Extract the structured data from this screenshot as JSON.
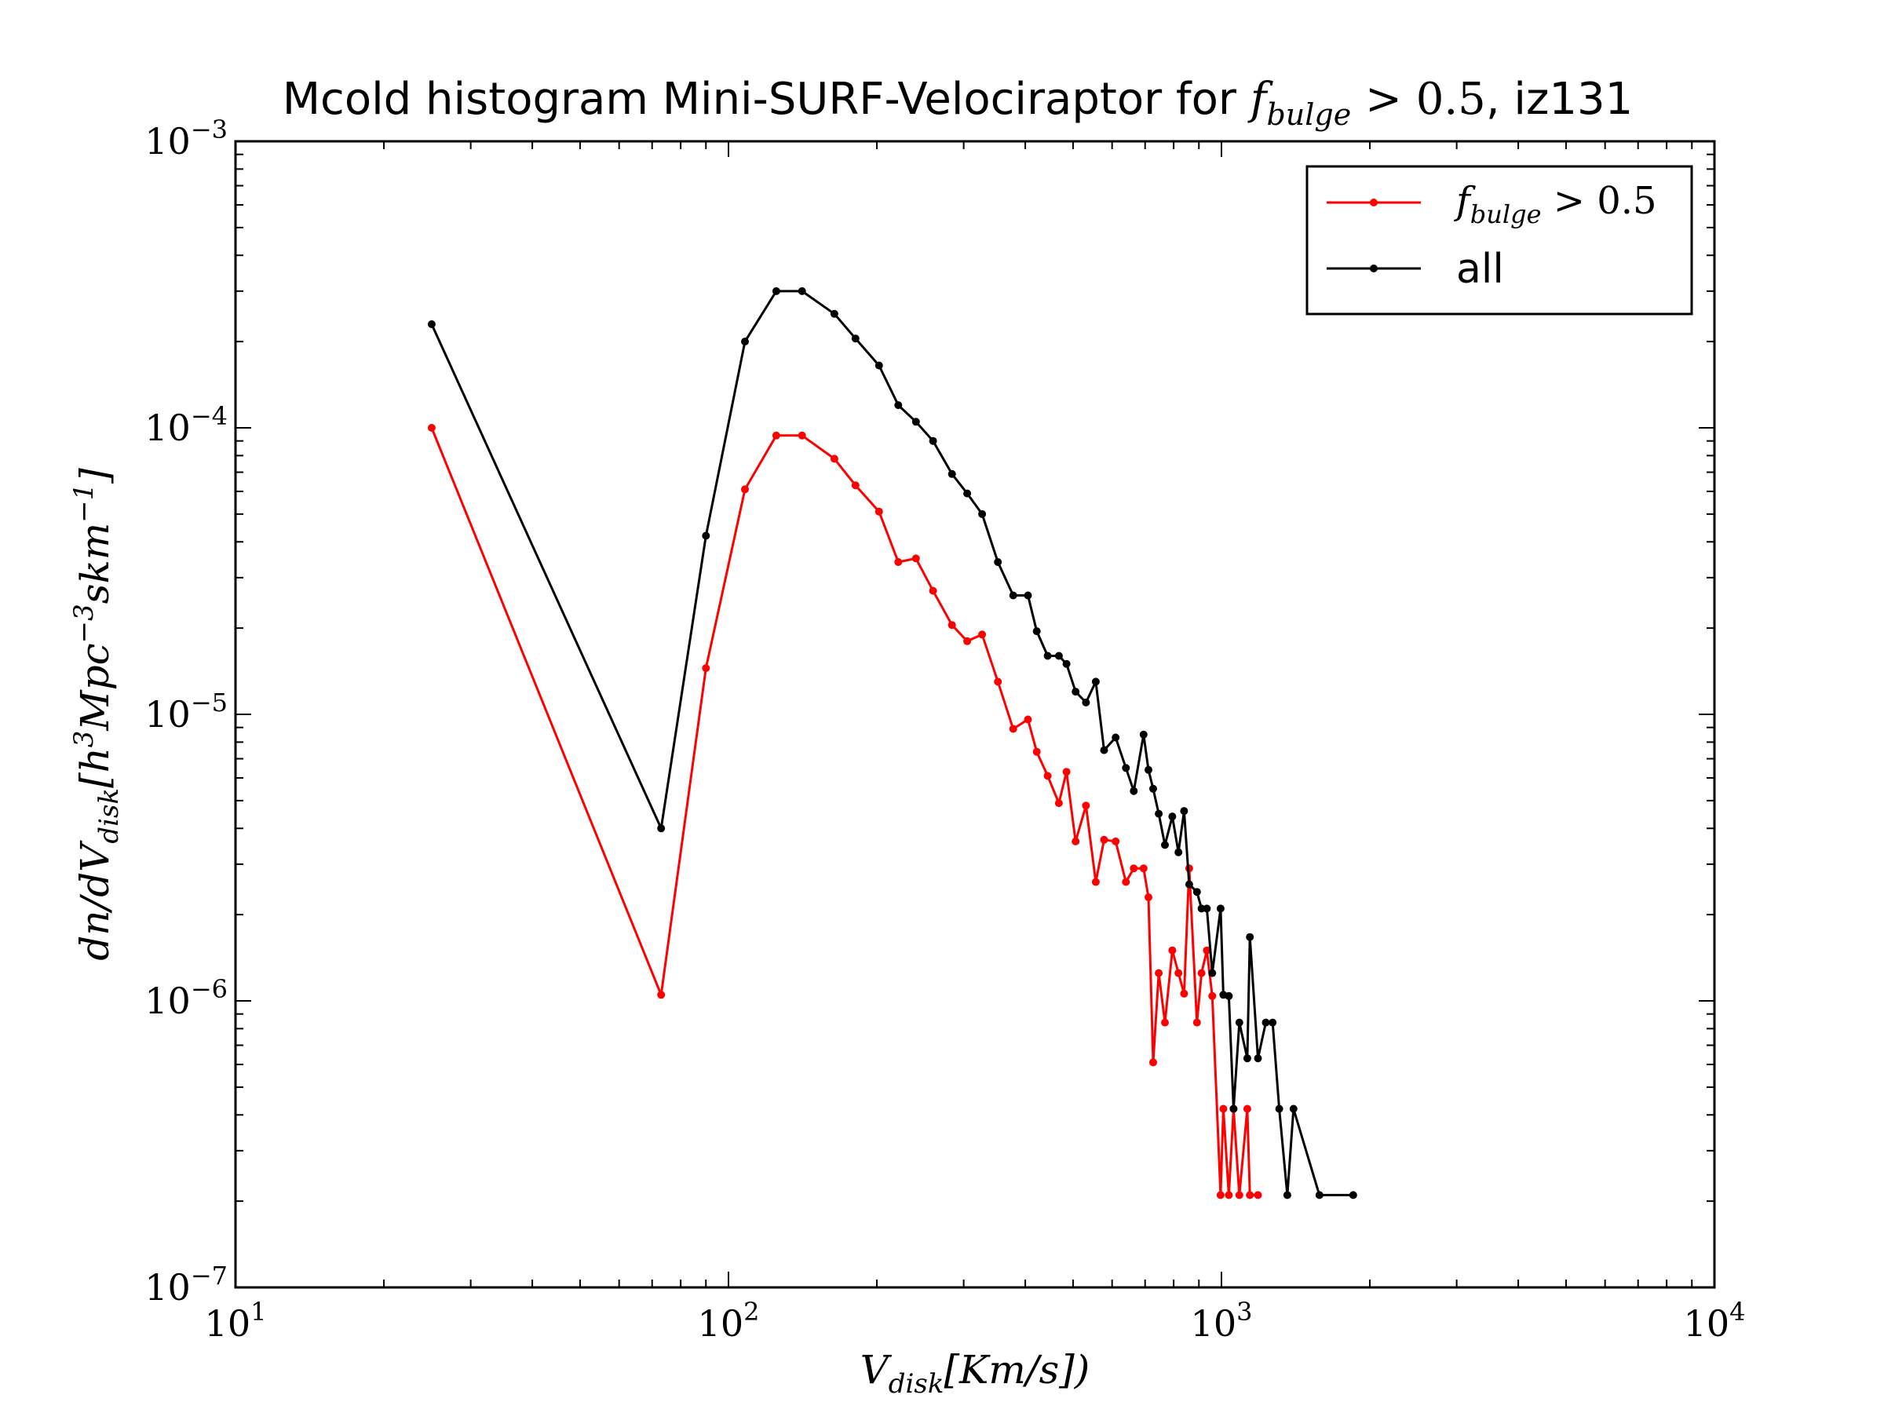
{
  "chart_data": {
    "type": "line",
    "title": {
      "prefix": "Mcold histogram Mini-SURF-Velociraptor for ",
      "math_base": "f",
      "math_sub": "bulge",
      "math_rest": " > 0.5",
      "suffix": ", iz131"
    },
    "xlabel": {
      "base": "V",
      "sub": "disk",
      "rest": "[Km/s])"
    },
    "ylabel": {
      "pre": "dn/dV",
      "sub": "disk",
      "mid": "[h",
      "sup1": "3",
      "mid2": "Mpc",
      "sup2": "−3",
      "mid3": "skm",
      "sup3": "−1",
      "end": "]"
    },
    "x_scale": "log",
    "y_scale": "log",
    "xlim": [
      10,
      10000
    ],
    "ylim": [
      1e-07,
      0.001
    ],
    "x_tick_labels": [
      {
        "value": 10,
        "base": "10",
        "exp": "1"
      },
      {
        "value": 100,
        "base": "10",
        "exp": "2"
      },
      {
        "value": 1000,
        "base": "10",
        "exp": "3"
      },
      {
        "value": 10000,
        "base": "10",
        "exp": "4"
      }
    ],
    "y_tick_labels": [
      {
        "value": 0.001,
        "base": "10",
        "exp": "−3"
      },
      {
        "value": 0.0001,
        "base": "10",
        "exp": "−4"
      },
      {
        "value": 1e-05,
        "base": "10",
        "exp": "−5"
      },
      {
        "value": 1e-06,
        "base": "10",
        "exp": "−6"
      },
      {
        "value": 1e-07,
        "base": "10",
        "exp": "−7"
      }
    ],
    "grid": false,
    "legend_position": "top-right",
    "series": [
      {
        "name": "f_bulge > 0.5",
        "legend": {
          "base": "f",
          "sub": "bulge",
          "rest": " > 0.5"
        },
        "color": "#ff0000",
        "x": [
          25,
          73,
          90,
          108,
          125,
          141,
          164,
          181,
          202,
          221,
          240,
          260,
          284,
          305,
          327,
          352,
          378,
          405,
          422,
          444,
          468,
          485,
          506,
          531,
          556,
          578,
          610,
          640,
          664,
          695,
          711,
          727,
          746,
          768,
          795,
          818,
          840,
          860,
          892,
          911,
          934,
          958,
          996,
          1009,
          1035,
          1058,
          1087,
          1128,
          1142,
          1186
        ],
        "y": [
          0.0001,
          1.05e-06,
          1.45e-05,
          6.1e-05,
          9.4e-05,
          9.4e-05,
          7.8e-05,
          6.3e-05,
          5.1e-05,
          3.4e-05,
          3.5e-05,
          2.7e-05,
          2.05e-05,
          1.8e-05,
          1.9e-05,
          1.3e-05,
          8.9e-06,
          9.6e-06,
          7.4e-06,
          6.1e-06,
          4.9e-06,
          6.3e-06,
          3.6e-06,
          4.8e-06,
          2.6e-06,
          3.65e-06,
          3.6e-06,
          2.6e-06,
          2.9e-06,
          2.9e-06,
          2.3e-06,
          6.1e-07,
          1.25e-06,
          8.4e-07,
          1.5e-06,
          1.25e-06,
          1.06e-06,
          2.9e-06,
          8.4e-07,
          1.25e-06,
          1.5e-06,
          1.04e-06,
          2.1e-07,
          4.2e-07,
          2.1e-07,
          4.2e-07,
          2.1e-07,
          4.2e-07,
          2.1e-07,
          2.1e-07
        ]
      },
      {
        "name": "all",
        "legend": {
          "base": "all",
          "sub": "",
          "rest": ""
        },
        "color": "#000000",
        "x": [
          25,
          73,
          90,
          108,
          125,
          141,
          164,
          181,
          202,
          221,
          240,
          260,
          284,
          305,
          327,
          352,
          378,
          405,
          422,
          444,
          468,
          485,
          506,
          531,
          556,
          578,
          610,
          640,
          664,
          695,
          711,
          727,
          746,
          768,
          795,
          818,
          840,
          860,
          892,
          911,
          934,
          958,
          996,
          1009,
          1035,
          1058,
          1087,
          1128,
          1142,
          1186,
          1230,
          1270,
          1310,
          1360,
          1400,
          1580,
          1850
        ],
        "y": [
          0.00023,
          4e-06,
          4.2e-05,
          0.0002,
          0.0003,
          0.0003,
          0.00025,
          0.000205,
          0.000165,
          0.00012,
          0.000105,
          9e-05,
          6.9e-05,
          5.9e-05,
          5e-05,
          3.4e-05,
          2.6e-05,
          2.6e-05,
          1.95e-05,
          1.6e-05,
          1.6e-05,
          1.5e-05,
          1.2e-05,
          1.1e-05,
          1.3e-05,
          7.5e-06,
          8.3e-06,
          6.5e-06,
          5.4e-06,
          8.5e-06,
          6.4e-06,
          5.5e-06,
          4.5e-06,
          3.5e-06,
          4.4e-06,
          3.3e-06,
          4.6e-06,
          2.55e-06,
          2.4e-06,
          2.1e-06,
          2.1e-06,
          1.25e-06,
          2.1e-06,
          1.05e-06,
          1.04e-06,
          4.2e-07,
          8.4e-07,
          6.3e-07,
          1.67e-06,
          6.3e-07,
          8.4e-07,
          8.4e-07,
          4.2e-07,
          2.1e-07,
          4.2e-07,
          2.1e-07,
          2.1e-07
        ]
      }
    ]
  }
}
